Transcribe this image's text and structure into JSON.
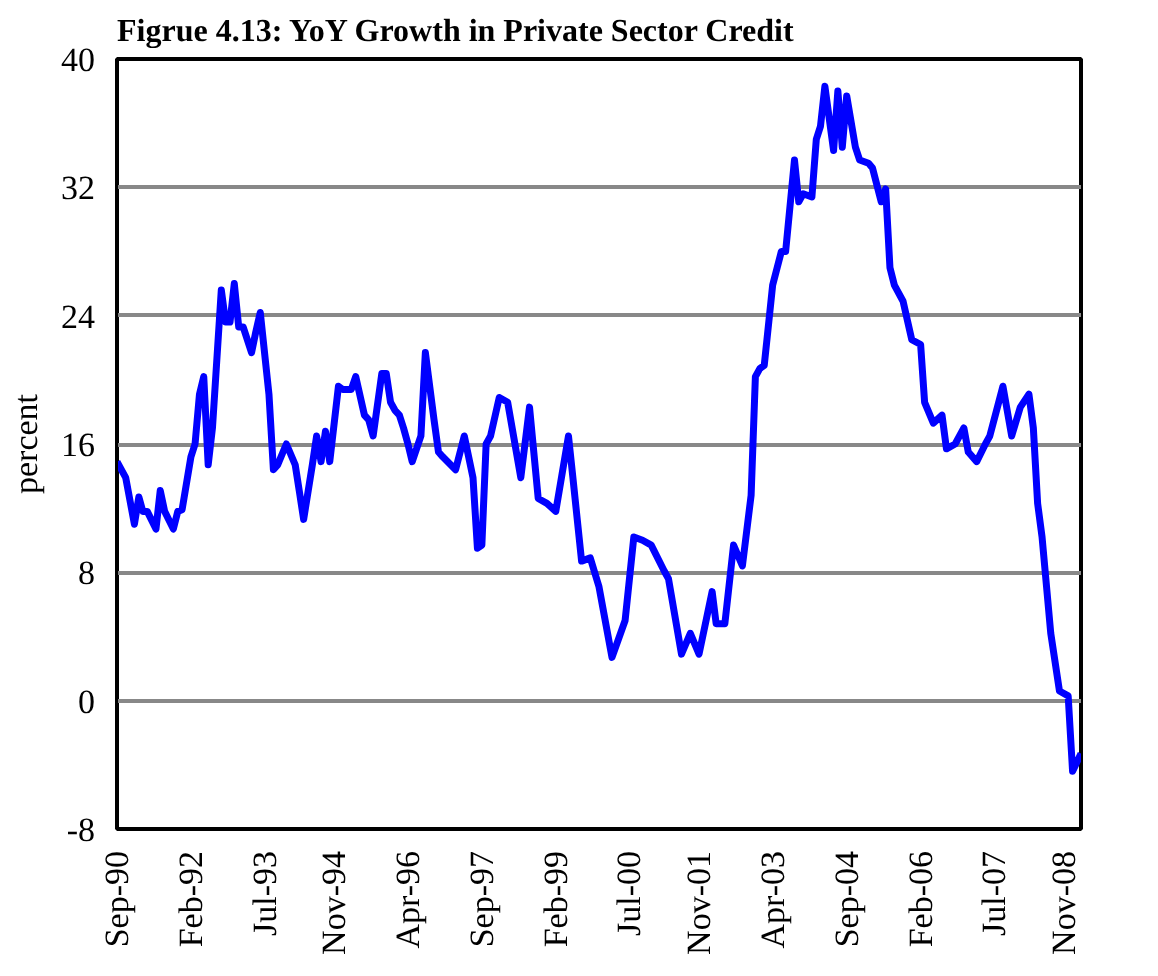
{
  "chart_data": {
    "type": "line",
    "title": "Figrue 4.13: YoY Growth in Private Sector Credit",
    "ylabel": "percent",
    "x": [
      "1990-09",
      "1990-11",
      "1991-01",
      "1991-02",
      "1991-03",
      "1991-04",
      "1991-06",
      "1991-07",
      "1991-08",
      "1991-10",
      "1991-11",
      "1991-12",
      "1992-02",
      "1992-03",
      "1992-04",
      "1992-05",
      "1992-06",
      "1992-07",
      "1992-09",
      "1992-10",
      "1992-11",
      "1992-12",
      "1993-01",
      "1993-02",
      "1993-04",
      "1993-05",
      "1993-06",
      "1993-08",
      "1993-09",
      "1993-10",
      "1993-12",
      "1994-02",
      "1994-03",
      "1994-04",
      "1994-06",
      "1994-07",
      "1994-08",
      "1994-09",
      "1994-10",
      "1994-12",
      "1995-01",
      "1995-03",
      "1995-04",
      "1995-06",
      "1995-07",
      "1995-08",
      "1995-10",
      "1995-11",
      "1995-12",
      "1996-01",
      "1996-02",
      "1996-03",
      "1996-04",
      "1996-05",
      "1996-07",
      "1996-08",
      "1996-10",
      "1996-11",
      "1996-12",
      "1997-03",
      "1997-05",
      "1997-07",
      "1997-08",
      "1997-09",
      "1997-10",
      "1997-11",
      "1998-01",
      "1998-03",
      "1998-06",
      "1998-08",
      "1998-10",
      "1998-12",
      "1999-02",
      "1999-05",
      "1999-06",
      "1999-08",
      "1999-10",
      "1999-12",
      "2000-03",
      "2000-06",
      "2000-08",
      "2000-10",
      "2000-12",
      "2001-03",
      "2001-04",
      "2001-07",
      "2001-09",
      "2001-11",
      "2002-02",
      "2002-03",
      "2002-05",
      "2002-07",
      "2002-09",
      "2002-11",
      "2002-12",
      "2003-01",
      "2003-02",
      "2003-04",
      "2003-06",
      "2003-07",
      "2003-09",
      "2003-10",
      "2003-11",
      "2004-01",
      "2004-02",
      "2004-03",
      "2004-04",
      "2004-06",
      "2004-07",
      "2004-08",
      "2004-09",
      "2004-11",
      "2004-12",
      "2005-02",
      "2005-03",
      "2005-05",
      "2005-06",
      "2005-07",
      "2005-08",
      "2005-10",
      "2005-12",
      "2006-02",
      "2006-03",
      "2006-05",
      "2006-07",
      "2006-08",
      "2006-10",
      "2006-12",
      "2007-01",
      "2007-03",
      "2007-05",
      "2007-06",
      "2007-09",
      "2007-11",
      "2008-01",
      "2008-03",
      "2008-04",
      "2008-05",
      "2008-06",
      "2008-08",
      "2008-10",
      "2008-12",
      "2009-01",
      "2009-03"
    ],
    "series": [
      {
        "color": "#0000ff",
        "values": [
          14.9,
          13.9,
          11.0,
          12.7,
          11.8,
          11.8,
          10.7,
          13.1,
          11.8,
          10.7,
          11.8,
          11.9,
          15.2,
          16.0,
          19.1,
          20.2,
          14.7,
          17.0,
          25.6,
          23.6,
          23.6,
          26.0,
          23.3,
          23.3,
          21.7,
          23.0,
          24.2,
          19.1,
          14.4,
          14.7,
          16.0,
          14.7,
          13.1,
          11.3,
          14.7,
          16.5,
          14.9,
          16.8,
          14.9,
          19.6,
          19.4,
          19.4,
          20.2,
          17.8,
          17.5,
          16.5,
          20.4,
          20.4,
          18.6,
          18.1,
          17.8,
          17.0,
          16.0,
          14.9,
          16.5,
          21.7,
          17.5,
          15.5,
          15.2,
          14.4,
          16.5,
          13.9,
          9.5,
          9.7,
          16.0,
          16.5,
          18.9,
          18.6,
          13.9,
          18.3,
          12.6,
          12.3,
          11.8,
          16.5,
          13.9,
          8.7,
          8.9,
          7.1,
          2.7,
          5.0,
          10.2,
          10.0,
          9.7,
          8.1,
          7.6,
          2.9,
          4.2,
          2.9,
          6.8,
          4.8,
          4.8,
          9.7,
          8.4,
          12.8,
          20.2,
          20.7,
          20.9,
          25.9,
          28.0,
          28.0,
          33.7,
          31.1,
          31.6,
          31.4,
          35.0,
          35.8,
          38.3,
          34.3,
          38.0,
          34.5,
          37.7,
          34.5,
          33.7,
          33.5,
          33.2,
          31.1,
          31.9,
          27.0,
          25.9,
          24.9,
          22.5,
          22.2,
          18.6,
          17.3,
          17.8,
          15.7,
          16.0,
          17.0,
          15.5,
          14.9,
          16.0,
          16.5,
          19.6,
          16.5,
          18.3,
          19.1,
          17.0,
          12.3,
          10.2,
          4.2,
          0.6,
          0.3,
          -4.4,
          -3.3
        ]
      }
    ],
    "xlim": [
      "1990-09",
      "2009-03"
    ],
    "xticks": [
      {
        "value": "1990-09",
        "label": "Sep-90"
      },
      {
        "value": "1992-02",
        "label": "Feb-92"
      },
      {
        "value": "1993-07",
        "label": "Jul-93"
      },
      {
        "value": "1994-11",
        "label": "Nov-94"
      },
      {
        "value": "1996-04",
        "label": "Apr-96"
      },
      {
        "value": "1997-09",
        "label": "Sep-97"
      },
      {
        "value": "1999-02",
        "label": "Feb-99"
      },
      {
        "value": "2000-07",
        "label": "Jul-00"
      },
      {
        "value": "2001-11",
        "label": "Nov-01"
      },
      {
        "value": "2003-04",
        "label": "Apr-03"
      },
      {
        "value": "2004-09",
        "label": "Sep-04"
      },
      {
        "value": "2006-02",
        "label": "Feb-06"
      },
      {
        "value": "2007-07",
        "label": "Jul-07"
      },
      {
        "value": "2008-11",
        "label": "Nov-08"
      }
    ],
    "ylim": [
      -8,
      40
    ],
    "yticks": [
      -8,
      0,
      8,
      16,
      24,
      32,
      40
    ],
    "grid": "y",
    "line_style": "solid",
    "marker": "none"
  }
}
